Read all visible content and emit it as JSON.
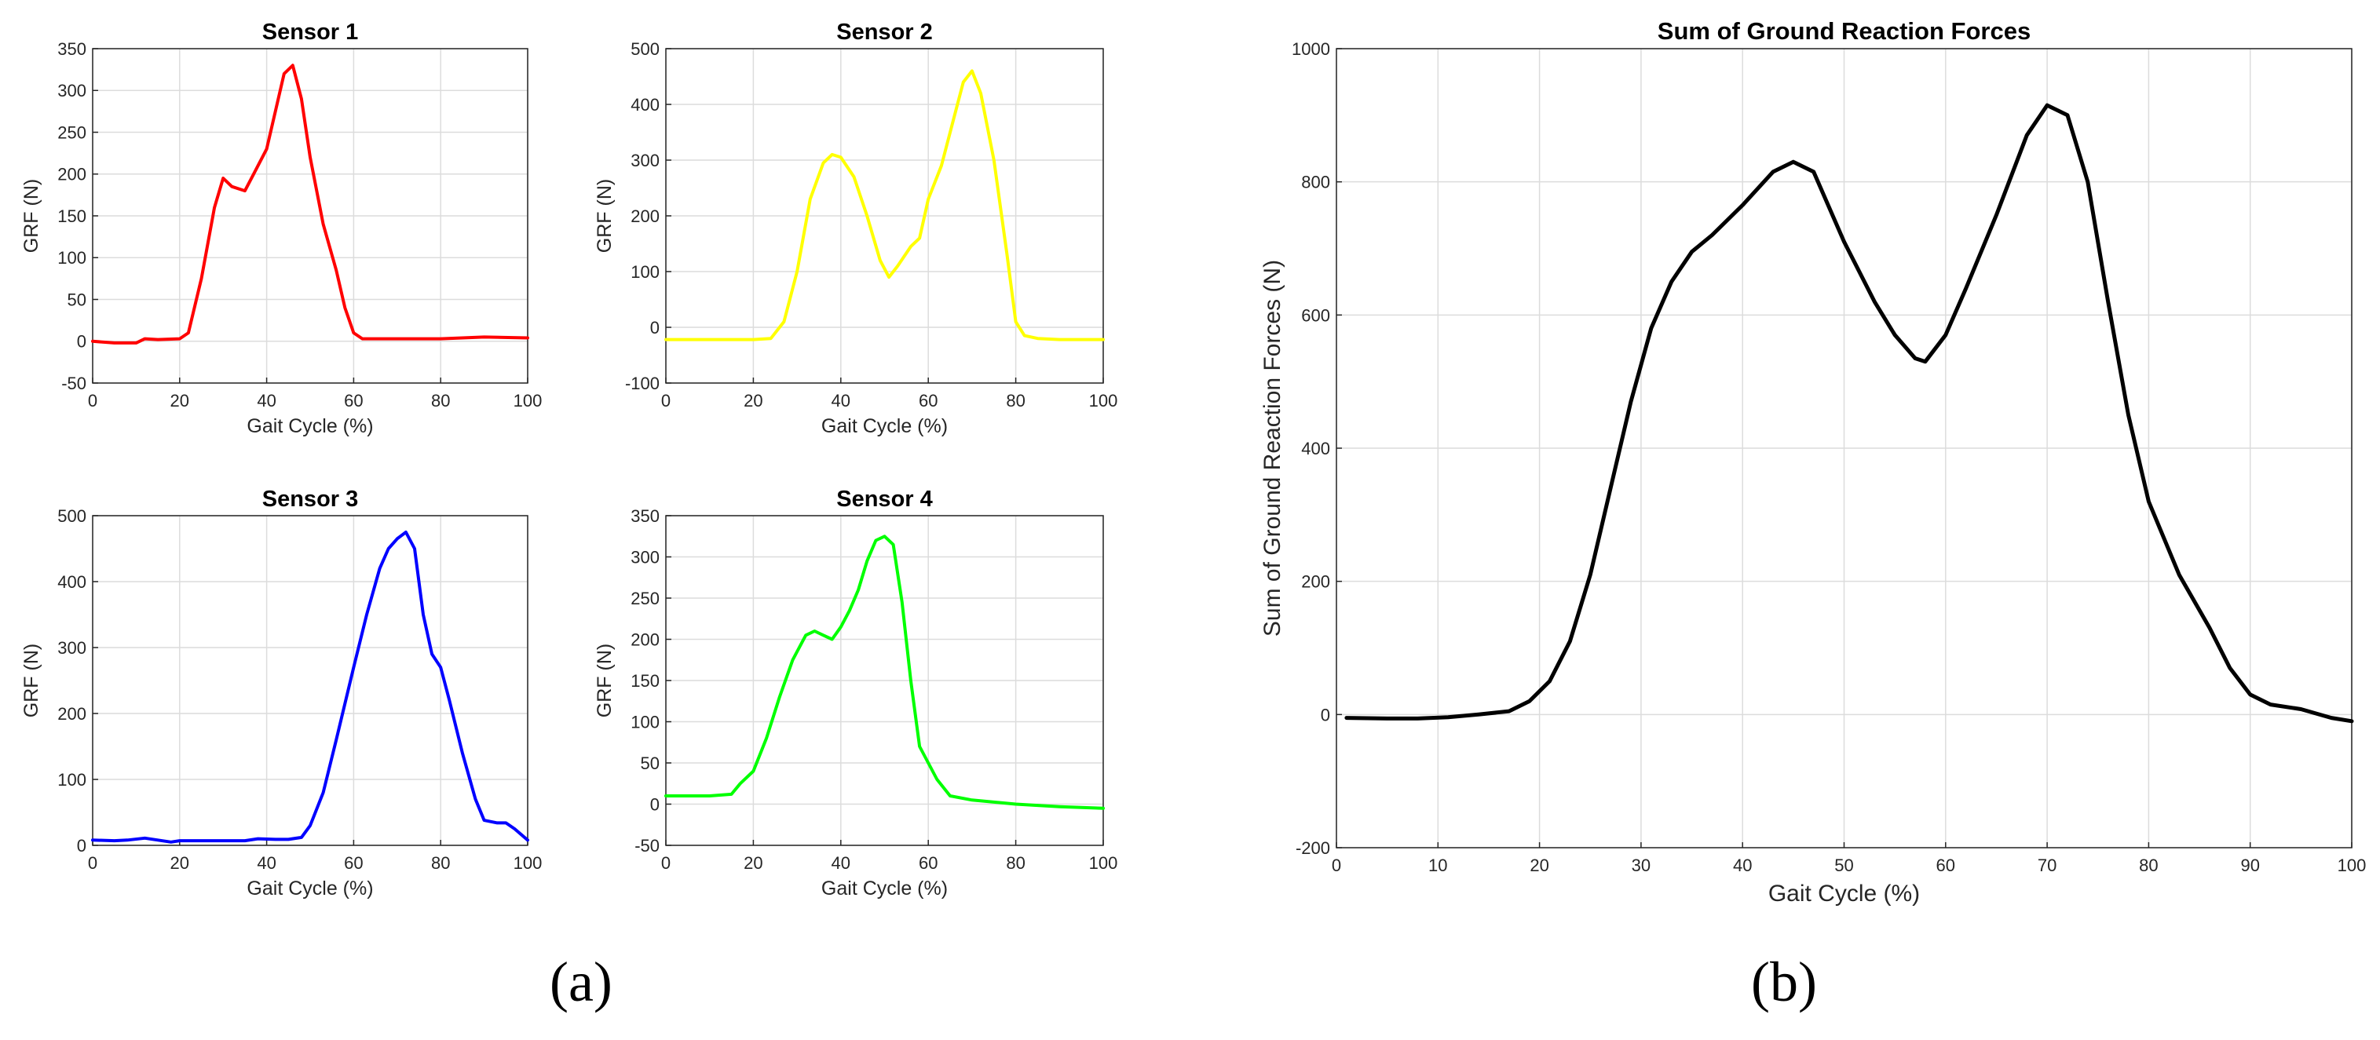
{
  "captions": {
    "a": "(a)",
    "b": "(b)"
  },
  "chart_data": [
    {
      "type": "line",
      "panel": "a",
      "title": "Sensor 1",
      "xlabel": "Gait Cycle (%)",
      "ylabel": "GRF (N)",
      "xlim": [
        0,
        100
      ],
      "ylim": [
        -50,
        350
      ],
      "xticks": [
        0,
        20,
        40,
        60,
        80,
        100
      ],
      "yticks": [
        -50,
        0,
        50,
        100,
        150,
        200,
        250,
        300,
        350
      ],
      "grid": true,
      "color": "#ff0000",
      "series": [
        {
          "x": [
            0,
            5,
            10,
            12,
            15,
            20,
            22,
            25,
            28,
            30,
            32,
            35,
            37,
            40,
            42,
            44,
            46,
            48,
            50,
            53,
            56,
            58,
            60,
            62,
            70,
            80,
            90,
            100
          ],
          "y": [
            0,
            -2,
            -2,
            3,
            2,
            3,
            10,
            75,
            160,
            195,
            185,
            180,
            200,
            230,
            275,
            320,
            330,
            290,
            220,
            140,
            85,
            40,
            10,
            3,
            3,
            3,
            5,
            4
          ]
        }
      ]
    },
    {
      "type": "line",
      "panel": "a",
      "title": "Sensor 2",
      "xlabel": "Gait Cycle (%)",
      "ylabel": "GRF (N)",
      "xlim": [
        0,
        100
      ],
      "ylim": [
        -100,
        500
      ],
      "xticks": [
        0,
        20,
        40,
        60,
        80,
        100
      ],
      "yticks": [
        -100,
        0,
        100,
        200,
        300,
        400,
        500
      ],
      "grid": true,
      "color": "#ffff00",
      "series": [
        {
          "x": [
            0,
            10,
            20,
            24,
            27,
            30,
            33,
            36,
            38,
            40,
            43,
            46,
            49,
            51,
            53,
            56,
            58,
            60,
            63,
            66,
            68,
            70,
            72,
            75,
            78,
            80,
            82,
            85,
            90,
            100
          ],
          "y": [
            -22,
            -22,
            -22,
            -20,
            10,
            100,
            230,
            295,
            310,
            305,
            270,
            200,
            120,
            90,
            110,
            145,
            160,
            230,
            290,
            380,
            440,
            460,
            420,
            300,
            130,
            10,
            -15,
            -20,
            -22,
            -22
          ]
        }
      ]
    },
    {
      "type": "line",
      "panel": "a",
      "title": "Sensor 3",
      "xlabel": "Gait Cycle (%)",
      "ylabel": "GRF (N)",
      "xlim": [
        0,
        100
      ],
      "ylim": [
        0,
        500
      ],
      "xticks": [
        0,
        20,
        40,
        60,
        80,
        100
      ],
      "yticks": [
        0,
        100,
        200,
        300,
        400,
        500
      ],
      "grid": true,
      "color": "#0000ff",
      "series": [
        {
          "x": [
            0,
            5,
            8,
            12,
            15,
            18,
            20,
            25,
            30,
            35,
            38,
            42,
            45,
            48,
            50,
            53,
            56,
            60,
            63,
            66,
            68,
            70,
            72,
            74,
            76,
            78,
            80,
            82,
            85,
            88,
            90,
            93,
            95,
            97,
            100
          ],
          "y": [
            8,
            7,
            8,
            11,
            8,
            5,
            7,
            7,
            7,
            7,
            10,
            9,
            9,
            12,
            30,
            80,
            160,
            270,
            350,
            420,
            450,
            465,
            475,
            450,
            350,
            290,
            270,
            220,
            140,
            70,
            38,
            34,
            34,
            25,
            8
          ]
        }
      ]
    },
    {
      "type": "line",
      "panel": "a",
      "title": "Sensor 4",
      "xlabel": "Gait Cycle (%)",
      "ylabel": "GRF (N)",
      "xlim": [
        0,
        100
      ],
      "ylim": [
        -50,
        350
      ],
      "xticks": [
        0,
        20,
        40,
        60,
        80,
        100
      ],
      "yticks": [
        -50,
        0,
        50,
        100,
        150,
        200,
        250,
        300,
        350
      ],
      "grid": true,
      "color": "#00ff00",
      "series": [
        {
          "x": [
            0,
            10,
            15,
            17,
            20,
            23,
            26,
            29,
            32,
            34,
            36,
            38,
            40,
            42,
            44,
            46,
            48,
            50,
            52,
            54,
            56,
            58,
            60,
            62,
            65,
            70,
            80,
            90,
            100
          ],
          "y": [
            10,
            10,
            12,
            25,
            40,
            80,
            130,
            175,
            205,
            210,
            205,
            200,
            215,
            235,
            260,
            295,
            320,
            325,
            315,
            245,
            150,
            70,
            50,
            30,
            10,
            5,
            0,
            -3,
            -5
          ]
        }
      ]
    },
    {
      "type": "line",
      "panel": "b",
      "title": "Sum of Ground Reaction Forces",
      "xlabel": "Gait Cycle (%)",
      "ylabel": "Sum of Ground Reaction Forces (N)",
      "xlim": [
        0,
        100
      ],
      "ylim": [
        -200,
        1000
      ],
      "xticks": [
        0,
        10,
        20,
        30,
        40,
        50,
        60,
        70,
        80,
        90,
        100
      ],
      "yticks": [
        -200,
        0,
        200,
        400,
        600,
        800,
        1000
      ],
      "grid": true,
      "color": "#000000",
      "series": [
        {
          "x": [
            1,
            5,
            8,
            11,
            14,
            17,
            19,
            21,
            23,
            25,
            27,
            29,
            31,
            33,
            35,
            37,
            40,
            43,
            45,
            47,
            50,
            53,
            55,
            57,
            58,
            60,
            62,
            65,
            68,
            70,
            72,
            74,
            76,
            78,
            80,
            83,
            86,
            88,
            90,
            92,
            95,
            98,
            100
          ],
          "y": [
            -5,
            -6,
            -6,
            -4,
            0,
            5,
            20,
            50,
            110,
            210,
            340,
            470,
            580,
            650,
            695,
            720,
            765,
            815,
            830,
            815,
            710,
            620,
            570,
            535,
            530,
            570,
            640,
            750,
            870,
            915,
            900,
            800,
            620,
            450,
            320,
            210,
            130,
            70,
            30,
            15,
            8,
            -5,
            -10
          ]
        }
      ]
    }
  ]
}
